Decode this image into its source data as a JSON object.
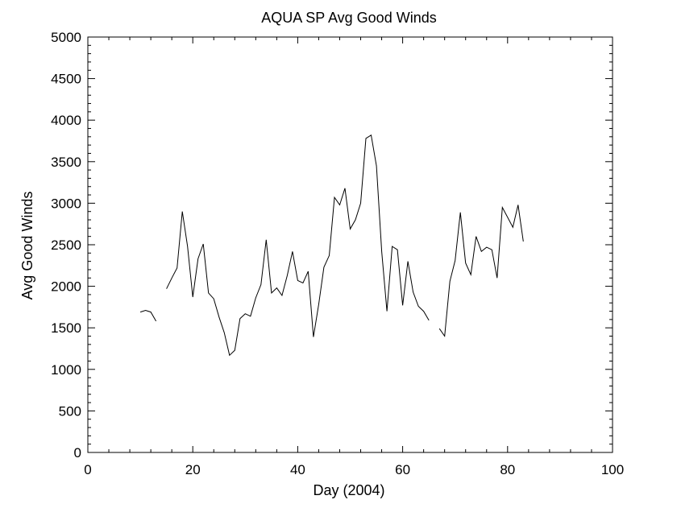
{
  "chart_data": {
    "type": "line",
    "title": "AQUA SP Avg Good Winds",
    "xlabel": "Day (2004)",
    "ylabel": "Avg Good Winds",
    "xlim": [
      0,
      100
    ],
    "ylim": [
      0,
      5000
    ],
    "x_ticks": [
      "0",
      "20",
      "40",
      "60",
      "80",
      "100"
    ],
    "y_ticks": [
      "0",
      "500",
      "1000",
      "1500",
      "2000",
      "2500",
      "3000",
      "3500",
      "4000",
      "4500",
      "5000"
    ],
    "grid": false,
    "legend": "none",
    "line_color": "#000000",
    "series": [
      {
        "segments": [
          [
            [
              10,
              1690
            ],
            [
              11,
              1710
            ],
            [
              12,
              1690
            ],
            [
              13,
              1580
            ]
          ],
          [
            [
              15,
              1970
            ],
            [
              16,
              2100
            ],
            [
              17,
              2220
            ],
            [
              18,
              2900
            ],
            [
              19,
              2480
            ],
            [
              20,
              1870
            ],
            [
              21,
              2330
            ],
            [
              22,
              2510
            ],
            [
              23,
              1920
            ],
            [
              24,
              1850
            ],
            [
              25,
              1630
            ],
            [
              26,
              1440
            ],
            [
              27,
              1170
            ],
            [
              28,
              1230
            ],
            [
              29,
              1610
            ],
            [
              30,
              1670
            ],
            [
              31,
              1640
            ],
            [
              32,
              1860
            ],
            [
              33,
              2020
            ],
            [
              34,
              2560
            ],
            [
              35,
              1920
            ],
            [
              36,
              1980
            ],
            [
              37,
              1890
            ],
            [
              38,
              2130
            ],
            [
              39,
              2420
            ],
            [
              40,
              2070
            ],
            [
              41,
              2040
            ],
            [
              42,
              2180
            ],
            [
              43,
              1390
            ],
            [
              44,
              1780
            ],
            [
              45,
              2230
            ],
            [
              46,
              2370
            ],
            [
              47,
              3070
            ],
            [
              48,
              2980
            ],
            [
              49,
              3180
            ],
            [
              50,
              2690
            ],
            [
              51,
              2800
            ],
            [
              52,
              3000
            ],
            [
              53,
              3780
            ],
            [
              54,
              3820
            ],
            [
              55,
              3450
            ],
            [
              56,
              2420
            ],
            [
              57,
              1700
            ],
            [
              58,
              2480
            ],
            [
              59,
              2440
            ],
            [
              60,
              1770
            ],
            [
              61,
              2300
            ],
            [
              62,
              1930
            ],
            [
              63,
              1760
            ],
            [
              64,
              1700
            ],
            [
              65,
              1590
            ]
          ],
          [
            [
              67,
              1490
            ],
            [
              68,
              1400
            ],
            [
              69,
              2060
            ],
            [
              70,
              2310
            ],
            [
              71,
              2890
            ],
            [
              72,
              2280
            ],
            [
              73,
              2140
            ],
            [
              74,
              2600
            ],
            [
              75,
              2420
            ],
            [
              76,
              2470
            ],
            [
              77,
              2440
            ],
            [
              78,
              2100
            ],
            [
              79,
              2950
            ],
            [
              80,
              2830
            ],
            [
              81,
              2710
            ],
            [
              82,
              2980
            ],
            [
              83,
              2540
            ]
          ]
        ]
      }
    ]
  }
}
